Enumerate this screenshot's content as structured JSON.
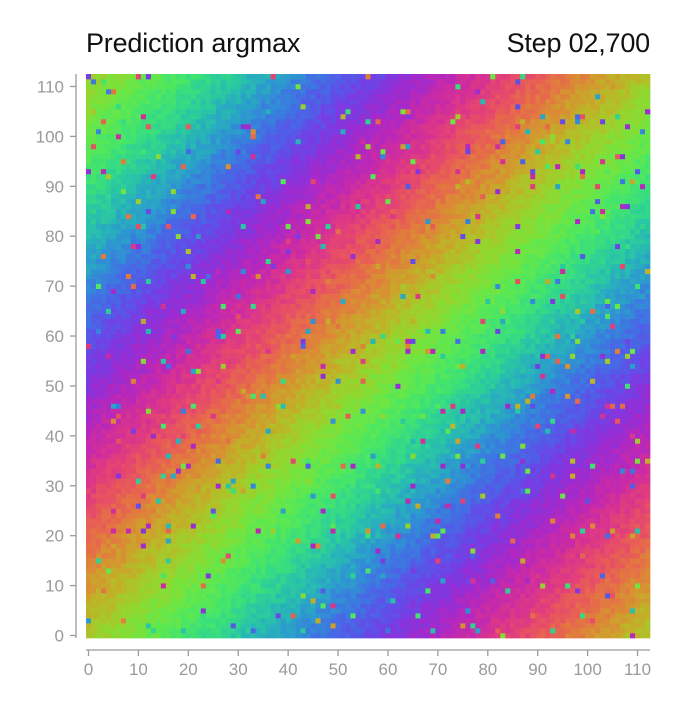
{
  "header": {
    "title": "Prediction argmax",
    "step_label": "Step 02,700"
  },
  "chart_data": {
    "type": "heatmap",
    "title": "Prediction argmax",
    "annotation": "Step 02,700",
    "grid_size": 113,
    "xlim": [
      0,
      112
    ],
    "ylim": [
      0,
      112
    ],
    "x_ticks": [
      0,
      10,
      20,
      30,
      40,
      50,
      60,
      70,
      80,
      90,
      100,
      110
    ],
    "y_ticks": [
      0,
      10,
      20,
      30,
      40,
      50,
      60,
      70,
      80,
      90,
      100,
      110
    ],
    "value_range": [
      0,
      112
    ],
    "colormap": "rainbow (cyclic)",
    "pattern": "value ≈ (x − y) mod 113, diagonal bands with sparse noisy cells",
    "grid": false
  }
}
